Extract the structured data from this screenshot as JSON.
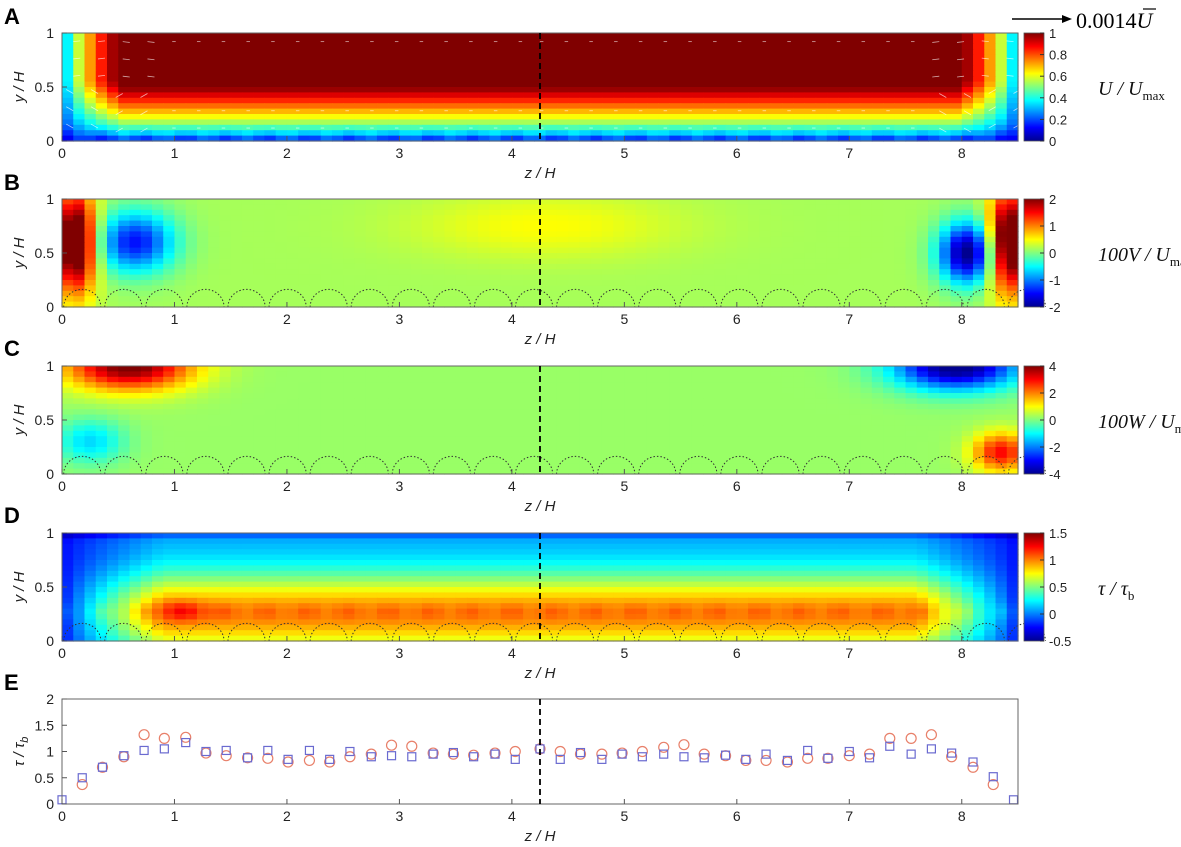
{
  "panel_letters": [
    "A",
    "B",
    "C",
    "D",
    "E"
  ],
  "vector_scale_label": "0.0014",
  "vector_scale_symbol": "U",
  "colormap": [
    "#00008f",
    "#0000ff",
    "#0080ff",
    "#00ffff",
    "#80ff80",
    "#ffff00",
    "#ff8000",
    "#ff0000",
    "#800000"
  ],
  "chart_data": [
    {
      "panel": "A",
      "type": "heatmap",
      "title": "",
      "xlabel": "z / H",
      "ylabel": "y / H",
      "xlim": [
        0,
        8.5
      ],
      "ylim": [
        0,
        1
      ],
      "xticks": [
        "0",
        "1",
        "2",
        "3",
        "4",
        "5",
        "6",
        "7",
        "8"
      ],
      "yticks": [
        "0",
        "0.5",
        "1"
      ],
      "colorbar": {
        "label": "U / U",
        "label_sub": "max",
        "range": [
          0,
          1
        ],
        "ticks": [
          "0",
          "0.2",
          "0.4",
          "0.6",
          "0.8",
          "1"
        ]
      },
      "dashed_line_z": 4.25
    },
    {
      "panel": "B",
      "type": "heatmap",
      "title": "",
      "xlabel": "z / H",
      "ylabel": "y / H",
      "xlim": [
        0,
        8.5
      ],
      "ylim": [
        0,
        1
      ],
      "xticks": [
        "0",
        "1",
        "2",
        "3",
        "4",
        "5",
        "6",
        "7",
        "8"
      ],
      "yticks": [
        "0",
        "0.5",
        "1"
      ],
      "colorbar": {
        "label": "100V / U",
        "label_sub": "max",
        "range": [
          -2,
          2
        ],
        "ticks": [
          "-2",
          "-1",
          "0",
          "1",
          "2"
        ]
      },
      "dashed_line_z": 4.25
    },
    {
      "panel": "C",
      "type": "heatmap",
      "title": "",
      "xlabel": "z / H",
      "ylabel": "y / H",
      "xlim": [
        0,
        8.5
      ],
      "ylim": [
        0,
        1
      ],
      "xticks": [
        "0",
        "1",
        "2",
        "3",
        "4",
        "5",
        "6",
        "7",
        "8"
      ],
      "yticks": [
        "0",
        "0.5",
        "1"
      ],
      "colorbar": {
        "label": "100W / U",
        "label_sub": "max",
        "range": [
          -4,
          4
        ],
        "ticks": [
          "-4",
          "-2",
          "0",
          "2",
          "4"
        ]
      },
      "dashed_line_z": 4.25
    },
    {
      "panel": "D",
      "type": "heatmap",
      "title": "",
      "xlabel": "z / H",
      "ylabel": "y / H",
      "xlim": [
        0,
        8.5
      ],
      "ylim": [
        0,
        1
      ],
      "xticks": [
        "0",
        "1",
        "2",
        "3",
        "4",
        "5",
        "6",
        "7",
        "8"
      ],
      "yticks": [
        "0",
        "0.5",
        "1"
      ],
      "colorbar": {
        "label": "τ / τ",
        "label_sub": "b",
        "range": [
          -0.5,
          1.5
        ],
        "ticks": [
          "-0.5",
          "0",
          "0.5",
          "1",
          "1.5"
        ]
      },
      "dashed_line_z": 4.25
    },
    {
      "panel": "E",
      "type": "scatter",
      "title": "",
      "xlabel": "z / H",
      "ylabel": "τ / τ",
      "ylabel_sub": "b",
      "xlim": [
        0,
        8.5
      ],
      "ylim": [
        0,
        2
      ],
      "xticks": [
        "0",
        "1",
        "2",
        "3",
        "4",
        "5",
        "6",
        "7",
        "8"
      ],
      "yticks": [
        "0",
        "0.5",
        "1",
        "1.5",
        "2"
      ],
      "dashed_line_z": 4.25,
      "series": [
        {
          "marker": "circle",
          "color": "#e8806a",
          "points": [
            [
              0.18,
              0.37
            ],
            [
              0.36,
              0.7
            ],
            [
              0.55,
              0.9
            ],
            [
              0.73,
              1.32
            ],
            [
              0.91,
              1.25
            ],
            [
              1.1,
              1.27
            ],
            [
              1.28,
              0.97
            ],
            [
              1.46,
              0.92
            ],
            [
              1.65,
              0.88
            ],
            [
              1.83,
              0.87
            ],
            [
              2.01,
              0.8
            ],
            [
              2.2,
              0.83
            ],
            [
              2.38,
              0.8
            ],
            [
              2.56,
              0.9
            ],
            [
              2.75,
              0.95
            ],
            [
              2.93,
              1.12
            ],
            [
              3.11,
              1.1
            ],
            [
              3.3,
              0.97
            ],
            [
              3.48,
              0.95
            ],
            [
              3.66,
              0.93
            ],
            [
              3.85,
              0.97
            ],
            [
              4.03,
              1.0
            ],
            [
              4.25,
              1.05
            ],
            [
              4.43,
              1.0
            ],
            [
              4.61,
              0.95
            ],
            [
              4.8,
              0.95
            ],
            [
              4.98,
              0.97
            ],
            [
              5.16,
              1.0
            ],
            [
              5.35,
              1.08
            ],
            [
              5.53,
              1.13
            ],
            [
              5.71,
              0.95
            ],
            [
              5.9,
              0.92
            ],
            [
              6.08,
              0.83
            ],
            [
              6.26,
              0.83
            ],
            [
              6.45,
              0.8
            ],
            [
              6.63,
              0.87
            ],
            [
              6.81,
              0.87
            ],
            [
              7.0,
              0.92
            ],
            [
              7.18,
              0.95
            ],
            [
              7.36,
              1.25
            ],
            [
              7.55,
              1.25
            ],
            [
              7.73,
              1.32
            ],
            [
              7.91,
              0.9
            ],
            [
              8.1,
              0.7
            ],
            [
              8.28,
              0.37
            ]
          ]
        },
        {
          "marker": "square",
          "color": "#6a6ad0",
          "points": [
            [
              0.0,
              0.08
            ],
            [
              0.18,
              0.5
            ],
            [
              0.36,
              0.7
            ],
            [
              0.55,
              0.92
            ],
            [
              0.73,
              1.02
            ],
            [
              0.91,
              1.05
            ],
            [
              1.1,
              1.17
            ],
            [
              1.28,
              1.0
            ],
            [
              1.46,
              1.02
            ],
            [
              1.65,
              0.88
            ],
            [
              1.83,
              1.02
            ],
            [
              2.01,
              0.85
            ],
            [
              2.2,
              1.02
            ],
            [
              2.38,
              0.85
            ],
            [
              2.56,
              1.0
            ],
            [
              2.75,
              0.9
            ],
            [
              2.93,
              0.92
            ],
            [
              3.11,
              0.9
            ],
            [
              3.3,
              0.95
            ],
            [
              3.48,
              0.98
            ],
            [
              3.66,
              0.9
            ],
            [
              3.85,
              0.95
            ],
            [
              4.03,
              0.85
            ],
            [
              4.25,
              1.05
            ],
            [
              4.43,
              0.85
            ],
            [
              4.61,
              0.98
            ],
            [
              4.8,
              0.85
            ],
            [
              4.98,
              0.95
            ],
            [
              5.16,
              0.9
            ],
            [
              5.35,
              0.95
            ],
            [
              5.53,
              0.9
            ],
            [
              5.71,
              0.88
            ],
            [
              5.9,
              0.93
            ],
            [
              6.08,
              0.85
            ],
            [
              6.26,
              0.95
            ],
            [
              6.45,
              0.83
            ],
            [
              6.63,
              1.02
            ],
            [
              6.81,
              0.87
            ],
            [
              7.0,
              1.0
            ],
            [
              7.18,
              0.88
            ],
            [
              7.36,
              1.1
            ],
            [
              7.55,
              0.95
            ],
            [
              7.73,
              1.05
            ],
            [
              7.91,
              0.97
            ],
            [
              8.1,
              0.8
            ],
            [
              8.28,
              0.52
            ],
            [
              8.46,
              0.08
            ]
          ]
        }
      ]
    }
  ]
}
